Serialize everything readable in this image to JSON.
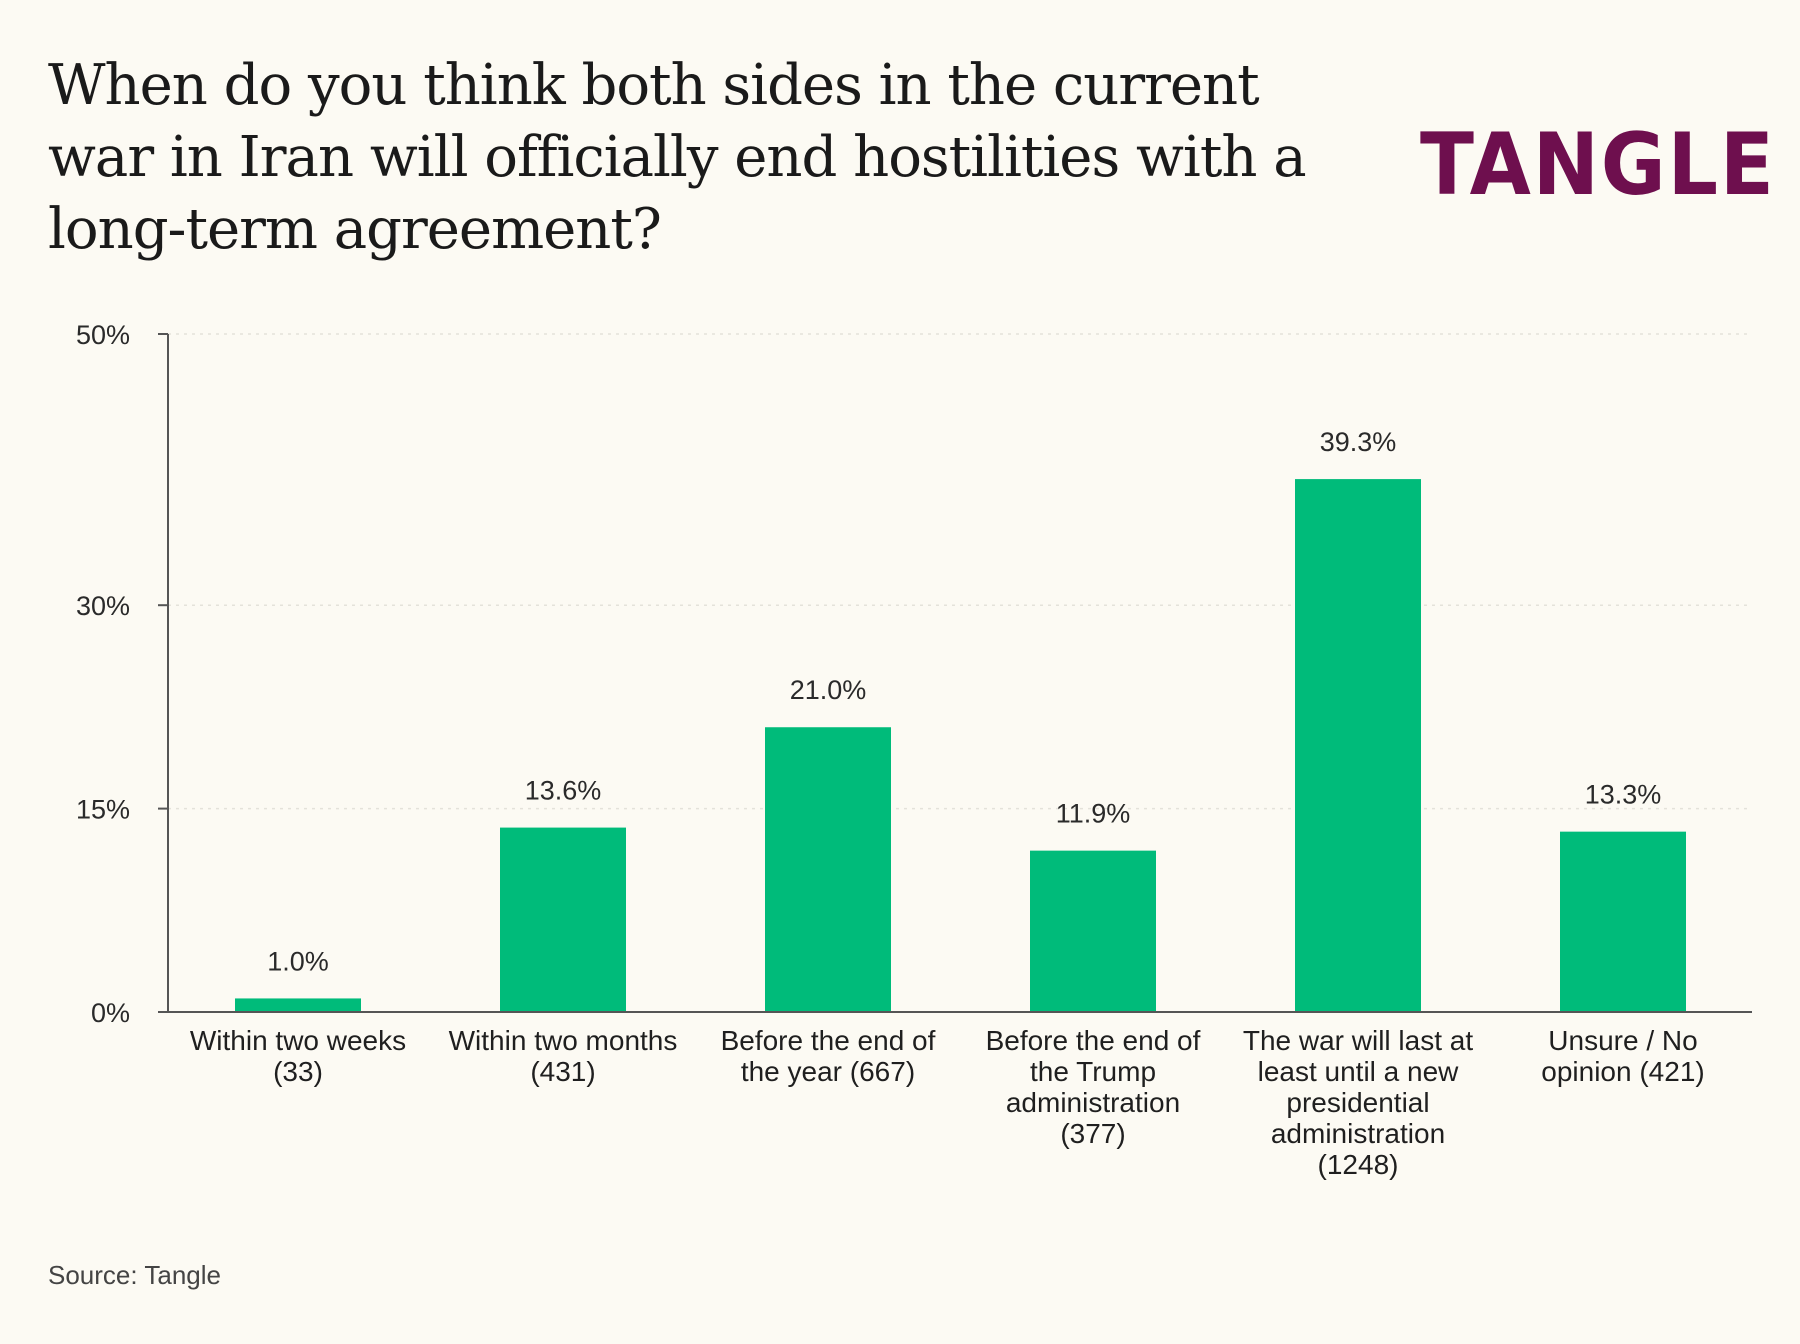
{
  "title": "When do you think both sides in the current war in Iran will officially end hostilities with a long-term agreement?",
  "logo": "TANGLE",
  "source": "Source: Tangle",
  "colors": {
    "bar": "#00bb7a",
    "logo": "#6e0f4e",
    "background": "#fcfaf3",
    "axis": "#555555",
    "grid": "#e4e2da"
  },
  "chart_data": {
    "type": "bar",
    "title": "When do you think both sides in the current war in Iran will officially end hostilities with a long-term agreement?",
    "xlabel": "",
    "ylabel": "",
    "ylim": [
      0,
      50
    ],
    "yticks": [
      0,
      15,
      30,
      50
    ],
    "ytick_labels": [
      "0%",
      "15%",
      "30%",
      "50%"
    ],
    "grid": true,
    "categories": [
      "Within two weeks (33)",
      "Within two months (431)",
      "Before the end of the year (667)",
      "Before the end of the Trump administration (377)",
      "The war will last at least until a new presidential administration (1248)",
      "Unsure / No opinion (421)"
    ],
    "category_lines": [
      [
        "Within two weeks",
        "(33)"
      ],
      [
        "Within two months",
        "(431)"
      ],
      [
        "Before the end of",
        "the year (667)"
      ],
      [
        "Before the end of",
        "the Trump",
        "administration",
        "(377)"
      ],
      [
        "The war will last at",
        "least until a new",
        "presidential",
        "administration",
        "(1248)"
      ],
      [
        "Unsure / No",
        "opinion (421)"
      ]
    ],
    "values": [
      1.0,
      13.6,
      21.0,
      11.9,
      39.3,
      13.3
    ],
    "value_labels": [
      "1.0%",
      "13.6%",
      "21.0%",
      "11.9%",
      "39.3%",
      "13.3%"
    ]
  }
}
